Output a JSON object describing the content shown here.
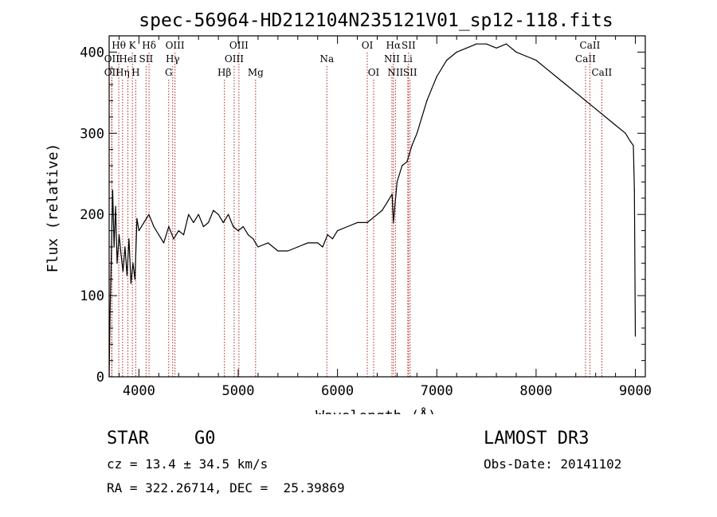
{
  "chart_data": {
    "type": "line",
    "title": "spec-56964-HD212104N235121V01_sp12-118.fits",
    "xlabel": "Wavelength (Å)",
    "ylabel": "Flux (relative)",
    "xlim": [
      3700,
      9100
    ],
    "ylim": [
      0,
      420
    ],
    "xticks": [
      4000,
      5000,
      6000,
      7000,
      8000,
      9000
    ],
    "yticks": [
      0,
      100,
      200,
      300,
      400
    ],
    "series": [
      {
        "name": "flux",
        "x": [
          3700,
          3710,
          3720,
          3735,
          3750,
          3765,
          3780,
          3800,
          3820,
          3840,
          3860,
          3880,
          3900,
          3920,
          3940,
          3960,
          3980,
          4000,
          4050,
          4100,
          4150,
          4200,
          4250,
          4300,
          4350,
          4400,
          4450,
          4500,
          4550,
          4600,
          4650,
          4700,
          4750,
          4800,
          4850,
          4900,
          4950,
          5000,
          5050,
          5100,
          5150,
          5200,
          5300,
          5400,
          5500,
          5600,
          5700,
          5800,
          5850,
          5900,
          5950,
          6000,
          6100,
          6200,
          6300,
          6400,
          6450,
          6500,
          6550,
          6563,
          6600,
          6650,
          6700,
          6750,
          6800,
          6850,
          6900,
          6950,
          7000,
          7100,
          7200,
          7300,
          7400,
          7500,
          7600,
          7700,
          7800,
          7900,
          8000,
          8100,
          8200,
          8300,
          8400,
          8500,
          8600,
          8700,
          8800,
          8900,
          8950,
          8980,
          8990,
          9000
        ],
        "y": [
          0,
          80,
          140,
          230,
          160,
          210,
          140,
          175,
          150,
          130,
          160,
          125,
          170,
          115,
          140,
          120,
          195,
          180,
          190,
          200,
          185,
          175,
          165,
          185,
          170,
          180,
          175,
          200,
          190,
          200,
          185,
          190,
          205,
          200,
          190,
          200,
          185,
          180,
          185,
          175,
          170,
          160,
          165,
          155,
          155,
          160,
          165,
          165,
          160,
          175,
          170,
          180,
          185,
          190,
          190,
          200,
          205,
          215,
          225,
          190,
          240,
          260,
          265,
          285,
          300,
          320,
          340,
          355,
          370,
          390,
          400,
          405,
          410,
          410,
          405,
          410,
          400,
          395,
          390,
          380,
          370,
          360,
          350,
          340,
          330,
          320,
          310,
          300,
          290,
          285,
          230,
          50
        ]
      }
    ],
    "line_markers": [
      {
        "wave": 3797,
        "label": "Hθ",
        "row": 0
      },
      {
        "wave": 3727,
        "label": "OII",
        "row": 1
      },
      {
        "wave": 3727,
        "label": "OII",
        "row": 2
      },
      {
        "wave": 3835,
        "label": "Hη",
        "row": 2
      },
      {
        "wave": 3889,
        "label": "HeI",
        "row": 1
      },
      {
        "wave": 3934,
        "label": "K",
        "row": 0
      },
      {
        "wave": 3968,
        "label": "H",
        "row": 2
      },
      {
        "wave": 4072,
        "label": "SII",
        "row": 1
      },
      {
        "wave": 4102,
        "label": "Hδ",
        "row": 0
      },
      {
        "wave": 4300,
        "label": "G",
        "row": 2
      },
      {
        "wave": 4340,
        "label": "Hγ",
        "row": 1
      },
      {
        "wave": 4363,
        "label": "OIII",
        "row": 0
      },
      {
        "wave": 4861,
        "label": "Hβ",
        "row": 2
      },
      {
        "wave": 4959,
        "label": "OIII",
        "row": 1
      },
      {
        "wave": 5007,
        "label": "OIII",
        "row": 0
      },
      {
        "wave": 5175,
        "label": "Mg",
        "row": 2
      },
      {
        "wave": 5893,
        "label": "Na",
        "row": 1
      },
      {
        "wave": 6300,
        "label": "OI",
        "row": 0
      },
      {
        "wave": 6364,
        "label": "OI",
        "row": 2
      },
      {
        "wave": 6548,
        "label": "NII",
        "row": 1
      },
      {
        "wave": 6563,
        "label": "Hα",
        "row": 0
      },
      {
        "wave": 6583,
        "label": "NII",
        "row": 2
      },
      {
        "wave": 6708,
        "label": "Li",
        "row": 1
      },
      {
        "wave": 6716,
        "label": "SII",
        "row": 0
      },
      {
        "wave": 6731,
        "label": "SII",
        "row": 2
      },
      {
        "wave": 8498,
        "label": "CaII",
        "row": 1
      },
      {
        "wave": 8542,
        "label": "CaII",
        "row": 0
      },
      {
        "wave": 8662,
        "label": "CaII",
        "row": 2
      }
    ]
  },
  "info": {
    "class": "STAR",
    "subclass": "G0",
    "survey": "LAMOST DR3",
    "cz": "cz = 13.4 ± 34.5 km/s",
    "obs_date": "Obs-Date: 20141102",
    "radec": "RA = 322.26714, DEC =  25.39869"
  }
}
